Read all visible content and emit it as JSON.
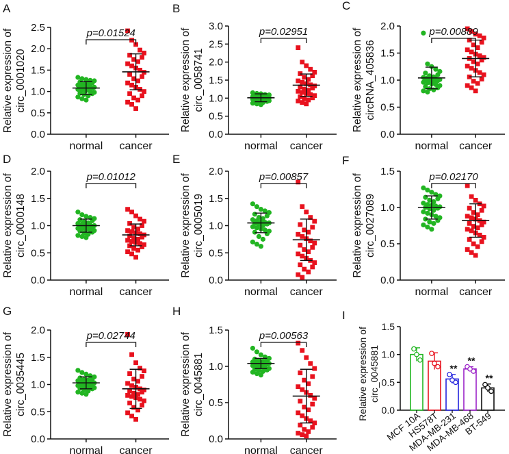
{
  "figure": {
    "green": "#22b522",
    "red": "#e8121e",
    "blue": "#2222dd",
    "purple": "#9b22c8",
    "black": "#111111"
  },
  "chart_data": [
    {
      "panel": "A",
      "type": "scatter",
      "ylabel": [
        "Relative expression of",
        "circ_0001020"
      ],
      "categories": [
        "normal",
        "cancer"
      ],
      "pvalue": "p=0.01524",
      "ylim": [
        0,
        2.5
      ],
      "yticks": [
        0.0,
        0.5,
        1.0,
        1.5,
        2.0,
        2.5
      ],
      "series": [
        {
          "name": "normal",
          "mean": 1.08,
          "sd": 0.15,
          "values": [
            1.33,
            1.3,
            1.28,
            1.26,
            1.25,
            1.22,
            1.2,
            1.18,
            1.17,
            1.15,
            1.14,
            1.12,
            1.11,
            1.1,
            1.09,
            1.08,
            1.07,
            1.06,
            1.05,
            1.03,
            1.02,
            1.0,
            0.98,
            0.96,
            0.95,
            0.93,
            0.9,
            0.87,
            0.83,
            0.8
          ]
        },
        {
          "name": "cancer",
          "mean": 1.46,
          "sd": 0.42,
          "values": [
            2.42,
            2.2,
            2.1,
            1.97,
            1.9,
            1.85,
            1.8,
            1.75,
            1.7,
            1.65,
            1.6,
            1.55,
            1.5,
            1.45,
            1.4,
            1.35,
            1.3,
            1.25,
            1.2,
            1.15,
            1.1,
            1.05,
            1.0,
            0.95,
            0.9,
            0.85,
            0.8,
            0.75,
            0.7,
            0.6
          ]
        }
      ]
    },
    {
      "panel": "B",
      "type": "scatter",
      "ylabel": [
        "Relative expression of",
        "circ_0058741"
      ],
      "categories": [
        "normal",
        "cancer"
      ],
      "pvalue": "p=0.02951",
      "ylim": [
        0,
        3.0
      ],
      "yticks": [
        0.0,
        0.5,
        1.0,
        1.5,
        2.0,
        2.5,
        3.0
      ],
      "series": [
        {
          "name": "normal",
          "mean": 1.01,
          "sd": 0.11,
          "values": [
            1.15,
            1.13,
            1.12,
            1.1,
            1.09,
            1.08,
            1.07,
            1.06,
            1.05,
            1.04,
            1.03,
            1.02,
            1.02,
            1.01,
            1.0,
            1.0,
            0.99,
            0.98,
            0.97,
            0.96,
            0.95,
            0.94,
            0.93,
            0.92,
            0.91,
            0.9,
            0.88,
            0.86,
            0.84,
            0.82
          ]
        },
        {
          "name": "cancer",
          "mean": 1.36,
          "sd": 0.31,
          "values": [
            2.4,
            2.0,
            1.9,
            1.8,
            1.72,
            1.68,
            1.62,
            1.58,
            1.52,
            1.48,
            1.44,
            1.4,
            1.37,
            1.34,
            1.31,
            1.28,
            1.25,
            1.22,
            1.19,
            1.16,
            1.13,
            1.1,
            1.07,
            1.04,
            1.01,
            0.98,
            0.95,
            0.92,
            0.88,
            0.84
          ]
        }
      ]
    },
    {
      "panel": "C",
      "type": "scatter",
      "ylabel": [
        "Relative expression of",
        "circRNA_405836"
      ],
      "categories": [
        "normal",
        "cancer"
      ],
      "pvalue": "p=0.00889",
      "ylim": [
        0,
        2.0
      ],
      "yticks": [
        0.0,
        0.5,
        1.0,
        1.5,
        2.0
      ],
      "series": [
        {
          "name": "normal",
          "mean": 1.04,
          "sd": 0.2,
          "values": [
            1.87,
            1.3,
            1.25,
            1.2,
            1.16,
            1.13,
            1.1,
            1.08,
            1.06,
            1.05,
            1.04,
            1.03,
            1.02,
            1.01,
            1.0,
            0.99,
            0.98,
            0.97,
            0.96,
            0.95,
            0.93,
            0.92,
            0.9,
            0.88,
            0.86,
            0.84,
            0.82,
            0.8,
            0.78
          ]
        },
        {
          "name": "cancer",
          "mean": 1.4,
          "sd": 0.34,
          "values": [
            1.95,
            1.9,
            1.85,
            1.82,
            1.78,
            1.74,
            1.7,
            1.65,
            1.6,
            1.56,
            1.52,
            1.48,
            1.45,
            1.42,
            1.4,
            1.37,
            1.34,
            1.3,
            1.26,
            1.22,
            1.18,
            1.14,
            1.1,
            1.06,
            1.02,
            0.98,
            0.94,
            0.9,
            0.86,
            0.8
          ]
        }
      ]
    },
    {
      "panel": "D",
      "type": "scatter",
      "ylabel": [
        "Relative expression of",
        "circ_0000148"
      ],
      "categories": [
        "normal",
        "cancer"
      ],
      "pvalue": "p=0.01012",
      "ylim": [
        0,
        2.0
      ],
      "yticks": [
        0.0,
        0.5,
        1.0,
        1.5,
        2.0
      ],
      "series": [
        {
          "name": "normal",
          "mean": 1.0,
          "sd": 0.12,
          "values": [
            1.25,
            1.2,
            1.17,
            1.15,
            1.13,
            1.11,
            1.09,
            1.07,
            1.05,
            1.04,
            1.03,
            1.02,
            1.01,
            1.0,
            0.99,
            0.98,
            0.97,
            0.96,
            0.95,
            0.94,
            0.93,
            0.92,
            0.91,
            0.9,
            0.88,
            0.86,
            0.84,
            0.82,
            0.8,
            0.78
          ]
        },
        {
          "name": "cancer",
          "mean": 0.83,
          "sd": 0.2,
          "values": [
            1.3,
            1.25,
            1.18,
            1.12,
            1.08,
            1.04,
            1.0,
            0.97,
            0.94,
            0.91,
            0.89,
            0.87,
            0.85,
            0.83,
            0.81,
            0.79,
            0.77,
            0.75,
            0.73,
            0.71,
            0.69,
            0.67,
            0.65,
            0.63,
            0.61,
            0.58,
            0.55,
            0.52,
            0.48,
            0.42
          ]
        }
      ]
    },
    {
      "panel": "E",
      "type": "scatter",
      "ylabel": [
        "Relative expression of",
        "circ_0005019"
      ],
      "categories": [
        "normal",
        "cancer"
      ],
      "pvalue": "p=0.00857",
      "ylim": [
        0,
        2.0
      ],
      "yticks": [
        0.0,
        0.5,
        1.0,
        1.5,
        2.0
      ],
      "series": [
        {
          "name": "normal",
          "mean": 1.05,
          "sd": 0.18,
          "values": [
            1.4,
            1.35,
            1.3,
            1.27,
            1.24,
            1.21,
            1.18,
            1.15,
            1.13,
            1.11,
            1.09,
            1.07,
            1.06,
            1.05,
            1.04,
            1.03,
            1.02,
            1.0,
            0.98,
            0.96,
            0.94,
            0.92,
            0.9,
            0.88,
            0.85,
            0.8,
            0.75,
            0.7,
            0.66,
            0.62
          ]
        },
        {
          "name": "cancer",
          "mean": 0.74,
          "sd": 0.38,
          "values": [
            1.8,
            1.35,
            1.25,
            1.15,
            1.08,
            1.02,
            0.97,
            0.92,
            0.88,
            0.84,
            0.8,
            0.76,
            0.72,
            0.68,
            0.64,
            0.6,
            0.56,
            0.52,
            0.48,
            0.44,
            0.4,
            0.36,
            0.32,
            0.28,
            0.24,
            0.2,
            0.15,
            0.1,
            0.05
          ]
        }
      ]
    },
    {
      "panel": "F",
      "type": "scatter",
      "ylabel": [
        "Relative expression of",
        "circ_0027089"
      ],
      "categories": [
        "normal",
        "cancer"
      ],
      "pvalue": "p=0.02170",
      "ylim": [
        0,
        1.5
      ],
      "yticks": [
        0.0,
        0.5,
        1.0,
        1.5
      ],
      "series": [
        {
          "name": "normal",
          "mean": 1.0,
          "sd": 0.16,
          "values": [
            1.27,
            1.24,
            1.21,
            1.18,
            1.16,
            1.14,
            1.12,
            1.1,
            1.08,
            1.06,
            1.04,
            1.03,
            1.02,
            1.01,
            1.0,
            0.99,
            0.98,
            0.96,
            0.94,
            0.92,
            0.9,
            0.88,
            0.86,
            0.84,
            0.82,
            0.8,
            0.78,
            0.76,
            0.73,
            0.7
          ]
        },
        {
          "name": "cancer",
          "mean": 0.82,
          "sd": 0.23,
          "values": [
            1.3,
            1.15,
            1.1,
            1.05,
            1.02,
            0.99,
            0.96,
            0.93,
            0.9,
            0.88,
            0.86,
            0.84,
            0.82,
            0.8,
            0.78,
            0.76,
            0.74,
            0.72,
            0.7,
            0.68,
            0.65,
            0.62,
            0.59,
            0.56,
            0.53,
            0.5,
            0.46,
            0.42,
            0.38,
            0.34
          ]
        }
      ]
    },
    {
      "panel": "G",
      "type": "scatter",
      "ylabel": [
        "Relative expression of",
        "circ_0035445"
      ],
      "categories": [
        "normal",
        "cancer"
      ],
      "pvalue": "p=0.02744",
      "ylim": [
        0,
        2.0
      ],
      "yticks": [
        0.0,
        0.5,
        1.0,
        1.5,
        2.0
      ],
      "series": [
        {
          "name": "normal",
          "mean": 1.03,
          "sd": 0.11,
          "values": [
            1.26,
            1.22,
            1.19,
            1.16,
            1.14,
            1.12,
            1.1,
            1.09,
            1.08,
            1.07,
            1.06,
            1.05,
            1.04,
            1.03,
            1.02,
            1.01,
            1.0,
            0.99,
            0.98,
            0.97,
            0.96,
            0.95,
            0.94,
            0.93,
            0.92,
            0.9,
            0.88,
            0.86,
            0.84,
            0.82
          ]
        },
        {
          "name": "cancer",
          "mean": 0.92,
          "sd": 0.36,
          "values": [
            1.92,
            1.55,
            1.4,
            1.3,
            1.25,
            1.2,
            1.15,
            1.1,
            1.06,
            1.02,
            0.98,
            0.95,
            0.92,
            0.9,
            0.88,
            0.86,
            0.84,
            0.82,
            0.8,
            0.78,
            0.76,
            0.73,
            0.7,
            0.66,
            0.62,
            0.58,
            0.53,
            0.48,
            0.42,
            0.36
          ]
        }
      ]
    },
    {
      "panel": "H",
      "type": "scatter",
      "ylabel": [
        "Relative expression of",
        "circ_0045881"
      ],
      "categories": [
        "normal",
        "cancer"
      ],
      "pvalue": "p=0.00563",
      "ylim": [
        0,
        1.5
      ],
      "yticks": [
        0.0,
        0.5,
        1.0,
        1.5
      ],
      "series": [
        {
          "name": "normal",
          "mean": 1.04,
          "sd": 0.07,
          "values": [
            1.25,
            1.2,
            1.16,
            1.13,
            1.11,
            1.1,
            1.09,
            1.08,
            1.07,
            1.06,
            1.05,
            1.05,
            1.04,
            1.04,
            1.03,
            1.03,
            1.02,
            1.02,
            1.01,
            1.0,
            0.99,
            0.98,
            0.97,
            0.96,
            0.95,
            0.94,
            0.93,
            0.92,
            0.9,
            0.88
          ]
        },
        {
          "name": "cancer",
          "mean": 0.59,
          "sd": 0.37,
          "values": [
            1.32,
            1.22,
            1.12,
            1.04,
            0.97,
            0.91,
            0.86,
            0.81,
            0.76,
            0.72,
            0.68,
            0.64,
            0.6,
            0.56,
            0.52,
            0.48,
            0.44,
            0.4,
            0.36,
            0.32,
            0.28,
            0.25,
            0.22,
            0.19,
            0.16,
            0.13,
            0.1,
            0.08,
            0.06,
            0.04
          ]
        }
      ]
    },
    {
      "panel": "I",
      "type": "bar",
      "ylabel": [
        "Relative expression of",
        "circ_0045881"
      ],
      "categories": [
        "MCF 10A",
        "HS578T",
        "MDA-MB-231",
        "MDA-MB-468",
        "BT-549"
      ],
      "values": [
        1.0,
        0.88,
        0.56,
        0.74,
        0.4
      ],
      "errors": [
        0.12,
        0.15,
        0.08,
        0.04,
        0.07
      ],
      "points": [
        [
          1.1,
          0.9,
          1.0
        ],
        [
          1.02,
          0.78,
          0.84
        ],
        [
          0.64,
          0.5,
          0.54
        ],
        [
          0.78,
          0.7,
          0.74
        ],
        [
          0.46,
          0.34,
          0.4
        ]
      ],
      "significance": [
        "",
        "",
        "**",
        "**",
        "**"
      ],
      "ylim": [
        0,
        1.5
      ],
      "yticks": [
        0.0,
        0.5,
        1.0,
        1.5
      ]
    }
  ]
}
